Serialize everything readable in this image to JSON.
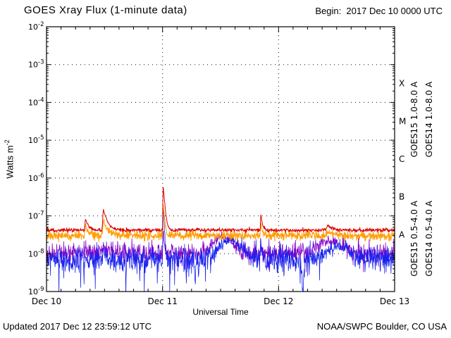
{
  "page": {
    "begin_line": "Begin:  2017 Dec 10 0000 UTC",
    "updated": "Updated 2017 Dec 12 23:59:12 UTC",
    "credit": "NOAA/SWPC Boulder, CO USA"
  },
  "chart_data": {
    "type": "line",
    "title": "GOES Xray Flux (1-minute data)",
    "xlabel": "Universal Time",
    "ylabel_base": "Watts m",
    "ylabel_exp": "-2",
    "x_ticks": [
      "Dec 10",
      "Dec 11",
      "Dec 12",
      "Dec 13"
    ],
    "x_range_days": [
      0,
      3
    ],
    "y_exponent_range": [
      -2,
      -9
    ],
    "grid": {
      "h_decades": [
        -3,
        -4,
        -5,
        -6,
        -7,
        -8
      ],
      "v_days": [
        1,
        2
      ]
    },
    "flare_classes": [
      {
        "label": "X",
        "log_mid": -3.5
      },
      {
        "label": "M",
        "log_mid": -4.5
      },
      {
        "label": "C",
        "log_mid": -5.5
      },
      {
        "label": "B",
        "log_mid": -6.5
      },
      {
        "label": "A",
        "log_mid": -7.5
      }
    ],
    "seed": 20171210,
    "series": [
      {
        "id": "goes14-short",
        "name": "GOES14 0.5-4.0 A",
        "color": "#7d00c8",
        "legend_group": "short",
        "legend_col": 1,
        "baseline": 1.05e-08,
        "noise_log_sigma": 0.13,
        "spike_noise": {
          "prob": 0.03,
          "mag": 0.55
        },
        "events": [
          {
            "t": 0.335,
            "amp": 4e-09,
            "rise": 0.012,
            "decay": 0.02
          },
          {
            "t": 0.49,
            "amp": 8e-09,
            "rise": 0.015,
            "decay": 0.025
          },
          {
            "t": 1.005,
            "amp": 4e-08,
            "rise": 0.005,
            "decay": 0.008
          },
          {
            "t": 1.52,
            "amp": 1.8e-08,
            "shape": "gauss",
            "width": 0.1
          },
          {
            "t": 1.846,
            "amp": 1e-08,
            "rise": 0.006,
            "decay": 0.01
          },
          {
            "t": 2.45,
            "amp": 1.1e-08,
            "shape": "gauss",
            "width": 0.12
          }
        ]
      },
      {
        "id": "goes15-short",
        "name": "GOES15 0.5-4.0 A",
        "color": "#1822f0",
        "legend_group": "short",
        "legend_col": 0,
        "baseline": 6.8e-09,
        "noise_log_sigma": 0.17,
        "spike_noise": {
          "prob": 0.04,
          "mag": 0.9
        },
        "events": [
          {
            "t": 0.335,
            "amp": 3e-09,
            "rise": 0.012,
            "decay": 0.02
          },
          {
            "t": 0.49,
            "amp": 7e-09,
            "rise": 0.015,
            "decay": 0.025
          },
          {
            "t": 1.005,
            "amp": 2.3e-07,
            "rise": 0.005,
            "decay": 0.006
          },
          {
            "t": 1.58,
            "amp": 1.5e-08,
            "shape": "gauss",
            "width": 0.12
          },
          {
            "t": 1.846,
            "amp": 1.4e-08,
            "rise": 0.005,
            "decay": 0.009
          },
          {
            "t": 2.52,
            "amp": 9e-09,
            "shape": "gauss",
            "width": 0.12
          }
        ],
        "dips": [
          {
            "t": 2.21,
            "depth": 0.85,
            "width": 0.012
          },
          {
            "t": 1.28,
            "depth": 0.5,
            "width": 0.01
          }
        ]
      },
      {
        "id": "goes14-long",
        "name": "GOES14 1.0-8.0 A",
        "color": "#ff9c00",
        "legend_group": "long",
        "legend_col": 1,
        "baseline": 3e-08,
        "noise_log_sigma": 0.06,
        "events": [
          {
            "t": 0.335,
            "amp": 2.2e-08,
            "rise": 0.012,
            "decay": 0.022
          },
          {
            "t": 0.49,
            "amp": 5e-08,
            "rise": 0.015,
            "decay": 0.028
          },
          {
            "t": 1.005,
            "amp": 2e-07,
            "rise": 0.006,
            "decay": 0.01
          },
          {
            "t": 1.846,
            "amp": 3.5e-08,
            "rise": 0.006,
            "decay": 0.012
          },
          {
            "t": 2.42,
            "amp": 8e-09,
            "rise": 0.02,
            "decay": 0.05
          }
        ]
      },
      {
        "id": "goes15-long",
        "name": "GOES15 1.0-8.0 A",
        "color": "#dc0000",
        "legend_group": "long",
        "legend_col": 0,
        "baseline": 4.2e-08,
        "noise_log_sigma": 0.025,
        "events": [
          {
            "t": 0.335,
            "amp": 4.5e-08,
            "rise": 0.012,
            "decay": 0.022
          },
          {
            "t": 0.49,
            "amp": 1.05e-07,
            "rise": 0.015,
            "decay": 0.028
          },
          {
            "t": 1.005,
            "amp": 6.2e-07,
            "rise": 0.006,
            "decay": 0.011
          },
          {
            "t": 1.846,
            "amp": 7e-08,
            "rise": 0.006,
            "decay": 0.012
          },
          {
            "t": 2.42,
            "amp": 1.4e-08,
            "rise": 0.02,
            "decay": 0.05
          }
        ]
      }
    ]
  }
}
